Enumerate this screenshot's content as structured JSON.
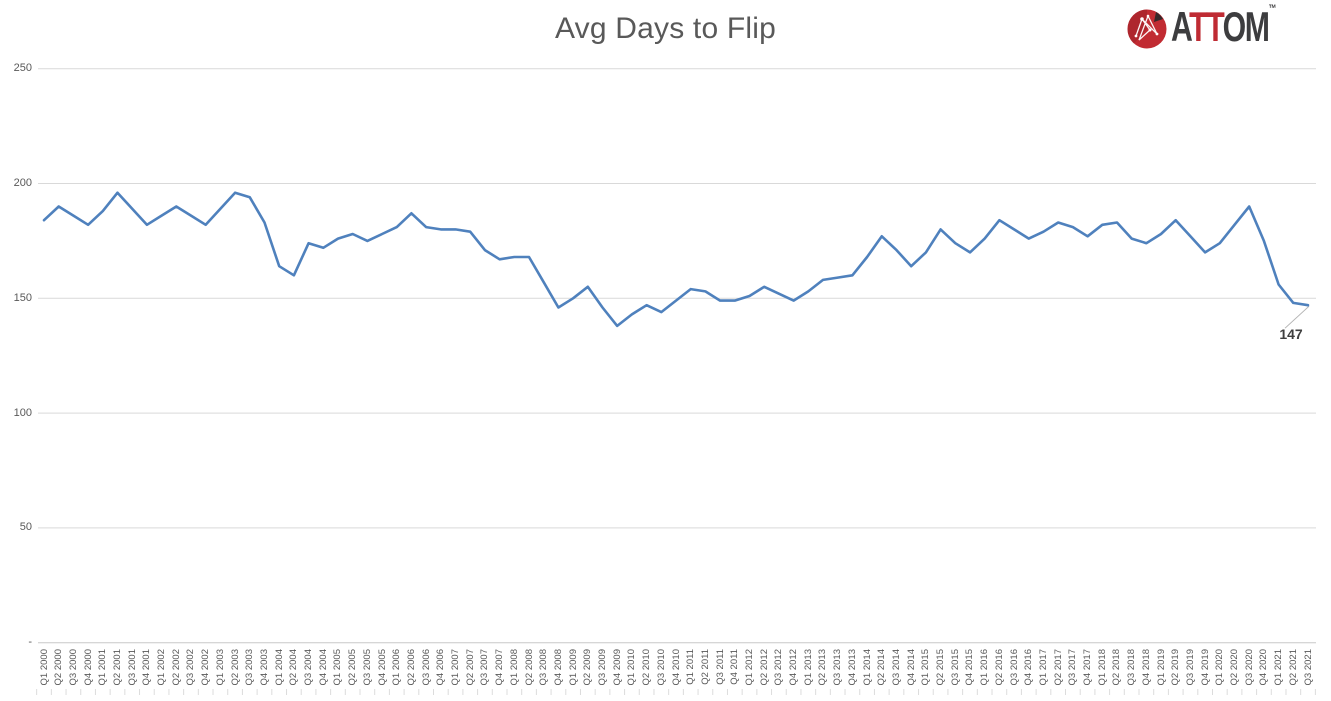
{
  "header": {
    "title": "Avg Days to Flip"
  },
  "logo": {
    "letter_a": "A",
    "letters_tt": "TT",
    "letters_om": "OM",
    "tm": "™",
    "dark_color": "#3d3d3f",
    "red_color": "#bf2b33",
    "icon_color": "#c12b32"
  },
  "chart_data": {
    "type": "line",
    "title": "Avg Days to Flip",
    "series_name": "Avg Days to Flip",
    "series_color": "#4f81bd",
    "grid": true,
    "legend_position": "none",
    "xlabel": "",
    "ylabel": "",
    "ylim": [
      0,
      250
    ],
    "y_ticks": [
      {
        "value": 250,
        "label": "250"
      },
      {
        "value": 200,
        "label": "200"
      },
      {
        "value": 150,
        "label": "150"
      },
      {
        "value": 100,
        "label": "100"
      },
      {
        "value": 50,
        "label": "50"
      },
      {
        "value": 0,
        "label": "-"
      }
    ],
    "categories": [
      "Q1 2000",
      "Q2 2000",
      "Q3 2000",
      "Q4 2000",
      "Q1 2001",
      "Q2 2001",
      "Q3 2001",
      "Q4 2001",
      "Q1 2002",
      "Q2 2002",
      "Q3 2002",
      "Q4 2002",
      "Q1 2003",
      "Q2 2003",
      "Q3 2003",
      "Q4 2003",
      "Q1 2004",
      "Q2 2004",
      "Q3 2004",
      "Q4 2004",
      "Q1 2005",
      "Q2 2005",
      "Q3 2005",
      "Q4 2005",
      "Q1 2006",
      "Q2 2006",
      "Q3 2006",
      "Q4 2006",
      "Q1 2007",
      "Q2 2007",
      "Q3 2007",
      "Q4 2007",
      "Q1 2008",
      "Q2 2008",
      "Q3 2008",
      "Q4 2008",
      "Q1 2009",
      "Q2 2009",
      "Q3 2009",
      "Q4 2009",
      "Q1 2010",
      "Q2 2010",
      "Q3 2010",
      "Q4 2010",
      "Q1 2011",
      "Q2 2011",
      "Q3 2011",
      "Q4 2011",
      "Q1 2012",
      "Q2 2012",
      "Q3 2012",
      "Q4 2012",
      "Q1 2013",
      "Q2 2013",
      "Q3 2013",
      "Q4 2013",
      "Q1 2014",
      "Q2 2014",
      "Q3 2014",
      "Q4 2014",
      "Q1 2015",
      "Q2 2015",
      "Q3 2015",
      "Q4 2015",
      "Q1 2016",
      "Q2 2016",
      "Q3 2016",
      "Q4 2016",
      "Q1 2017",
      "Q2 2017",
      "Q3 2017",
      "Q4 2017",
      "Q1 2018",
      "Q2 2018",
      "Q3 2018",
      "Q4 2018",
      "Q1 2019",
      "Q2 2019",
      "Q3 2019",
      "Q4 2019",
      "Q1 2020",
      "Q2 2020",
      "Q3 2020",
      "Q4 2020",
      "Q1 2021",
      "Q2 2021",
      "Q3 2021"
    ],
    "values": [
      184,
      190,
      186,
      182,
      188,
      196,
      189,
      182,
      186,
      190,
      186,
      182,
      189,
      196,
      194,
      183,
      164,
      160,
      174,
      172,
      176,
      178,
      175,
      178,
      181,
      187,
      181,
      180,
      180,
      179,
      171,
      167,
      168,
      168,
      157,
      146,
      150,
      155,
      146,
      138,
      143,
      147,
      144,
      149,
      154,
      153,
      149,
      149,
      151,
      155,
      152,
      149,
      153,
      158,
      159,
      160,
      168,
      177,
      171,
      164,
      170,
      180,
      174,
      170,
      176,
      184,
      180,
      176,
      179,
      183,
      181,
      177,
      182,
      183,
      176,
      174,
      178,
      184,
      177,
      170,
      174,
      182,
      190,
      175,
      156,
      148,
      147
    ],
    "annotation": {
      "label": "147",
      "category": "Q3 2021",
      "value": 147
    }
  }
}
